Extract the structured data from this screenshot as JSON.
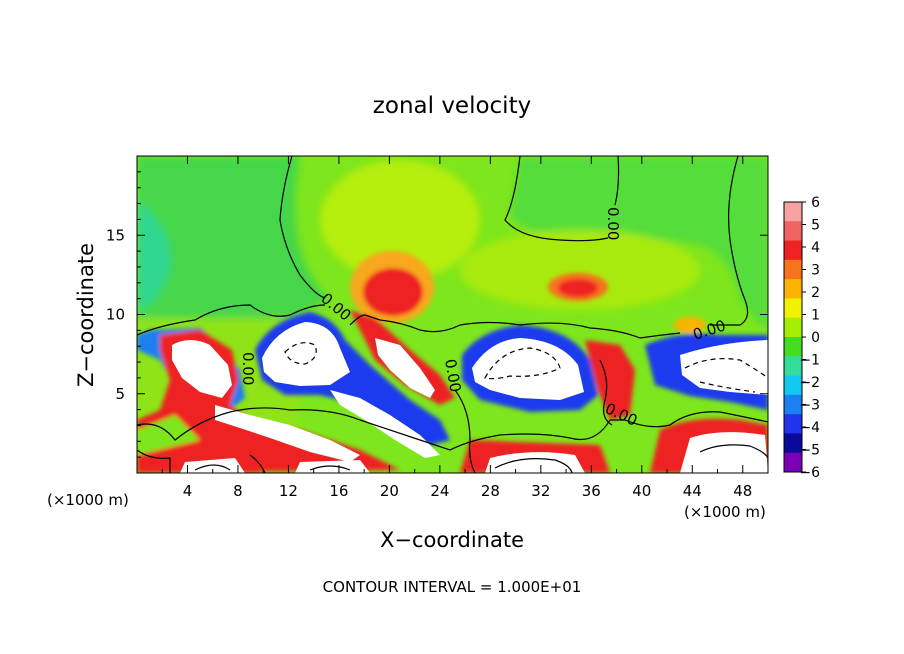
{
  "chart_data": {
    "type": "heatmap",
    "title": "zonal velocity",
    "xlabel": "X−coordinate",
    "ylabel": "Z−coordinate",
    "x_unit_left": "(×1000 m)",
    "x_unit_right": "(×1000 m)",
    "xlim": [
      0,
      50
    ],
    "ylim": [
      0,
      20
    ],
    "x_ticks": [
      4,
      8,
      12,
      16,
      20,
      24,
      28,
      32,
      36,
      40,
      44,
      48
    ],
    "y_ticks": [
      5,
      10,
      15
    ],
    "colorbar": {
      "levels": [
        6,
        5,
        4,
        3,
        2,
        1,
        0,
        -1,
        -2,
        -3,
        -4,
        -5,
        -6
      ],
      "labels": [
        "6",
        "5",
        "4",
        "3",
        "2",
        "1",
        "0",
        "−1",
        "−2",
        "−3",
        "−4",
        "−5",
        "−6"
      ],
      "colors": [
        "#f7a3a3",
        "#f26363",
        "#ee2222",
        "#f7731c",
        "#f9b300",
        "#f2f200",
        "#a6ee00",
        "#44dd22",
        "#33dd99",
        "#10c8f0",
        "#1a7ff0",
        "#2233ee",
        "#0a0a9a",
        "#7a00b8"
      ]
    },
    "features": [
      {
        "kind": "positive",
        "x": 20,
        "z": 11.5,
        "rx": 3.2,
        "rz": 2.5,
        "value": 5
      },
      {
        "kind": "positive",
        "x": 35,
        "z": 11.5,
        "rx": 2.5,
        "rz": 1,
        "value": 4
      },
      {
        "kind": "saturated_positive",
        "x": 5,
        "z": 6,
        "rx": 2.5,
        "rz": 2.5,
        "value": 10
      },
      {
        "kind": "saturated_positive",
        "x": 22,
        "z": 6.5,
        "rx": 2.5,
        "rz": 1.2,
        "value": 10
      },
      {
        "kind": "saturated_negative",
        "x": 15,
        "z": 7.5,
        "rx": 3.5,
        "rz": 2.3,
        "value": -10
      },
      {
        "kind": "saturated_negative",
        "x": 31,
        "z": 6.5,
        "rx": 3.5,
        "rz": 2.4,
        "value": -10
      },
      {
        "kind": "saturated_negative",
        "x": 47,
        "z": 6.5,
        "rx": 4,
        "rz": 2,
        "value": -10
      }
    ],
    "contour_labels": [
      "0.00",
      "0.00",
      "0.00",
      "0.00",
      "0.00",
      "0.00",
      "0.00"
    ],
    "footer": "CONTOUR INTERVAL = 1.000E+01"
  }
}
